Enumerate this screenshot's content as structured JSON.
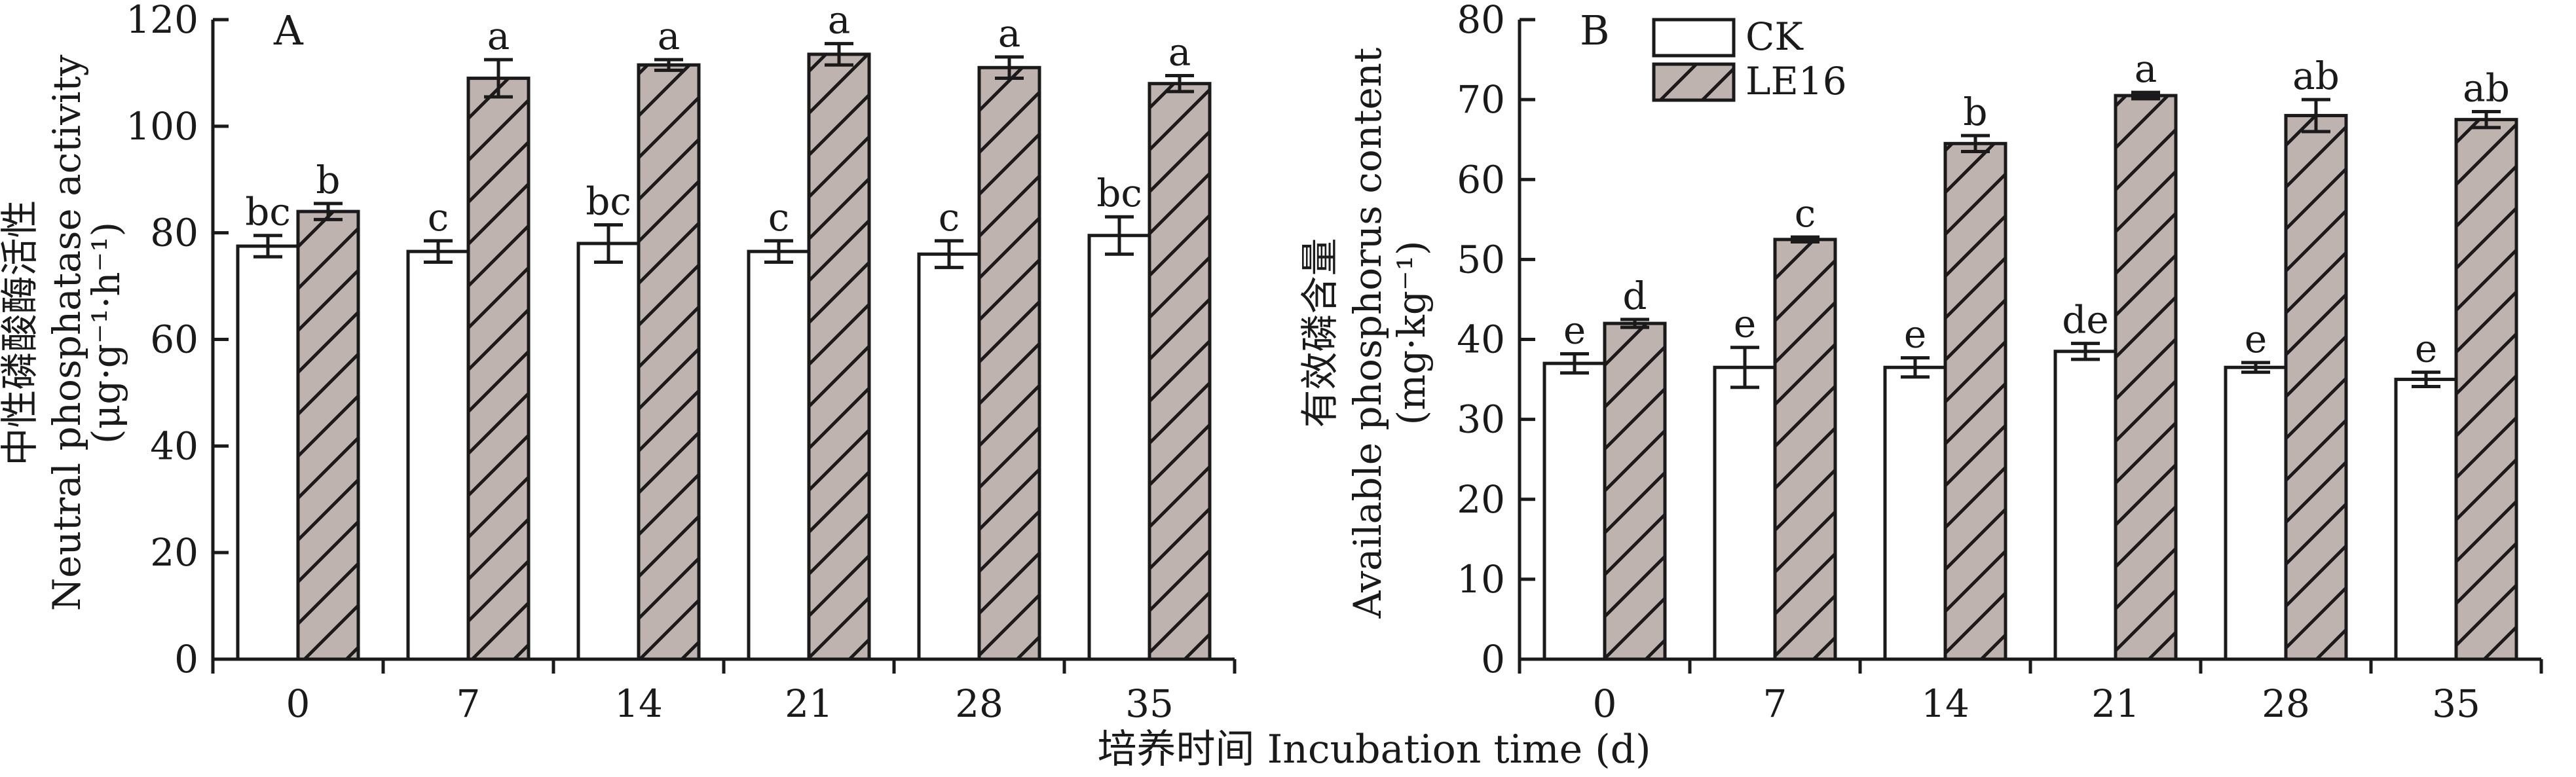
{
  "figure": {
    "xlabel": "培养时间 Incubation time (d)",
    "colors": {
      "ck_fill": "#ffffff",
      "le16_fill": "#bfb3b0",
      "stroke": "#1a1a1a"
    }
  },
  "chart_data": [
    {
      "type": "bar",
      "panel_label": "A",
      "categories": [
        "0",
        "7",
        "14",
        "21",
        "28",
        "35"
      ],
      "ylim": [
        0,
        120
      ],
      "yticks": [
        0,
        20,
        40,
        60,
        80,
        100,
        120
      ],
      "ylabel_cn": "中性磷酸酶活性",
      "ylabel_en": "Neutral phosphatase activity",
      "ylabel_unit": "(μg·g⁻¹·h⁻¹)",
      "legend": false,
      "series": [
        {
          "name": "CK",
          "pattern": "none",
          "values": [
            77.5,
            76.5,
            78,
            76.5,
            76,
            79.5
          ],
          "errors": [
            2,
            2,
            3.5,
            2,
            2.5,
            3.5
          ],
          "letters": [
            "bc",
            "c",
            "bc",
            "c",
            "c",
            "bc"
          ]
        },
        {
          "name": "LE16",
          "pattern": "hatch",
          "values": [
            84,
            109,
            111.5,
            113.5,
            111,
            108
          ],
          "errors": [
            1.5,
            3.5,
            1,
            2,
            2,
            1.5
          ],
          "letters": [
            "b",
            "a",
            "a",
            "a",
            "a",
            "a"
          ]
        }
      ]
    },
    {
      "type": "bar",
      "panel_label": "B",
      "categories": [
        "0",
        "7",
        "14",
        "21",
        "28",
        "35"
      ],
      "ylim": [
        0,
        80
      ],
      "yticks": [
        0,
        10,
        20,
        30,
        40,
        50,
        60,
        70,
        80
      ],
      "ylabel_cn": "有效磷含量",
      "ylabel_en": "Available phosphorus content",
      "ylabel_unit": "(mg·kg⁻¹)",
      "legend": true,
      "series": [
        {
          "name": "CK",
          "pattern": "none",
          "values": [
            37,
            36.5,
            36.5,
            38.5,
            36.5,
            35
          ],
          "errors": [
            1.2,
            2.5,
            1.2,
            1.0,
            0.6,
            0.9
          ],
          "letters": [
            "e",
            "e",
            "e",
            "de",
            "e",
            "e"
          ]
        },
        {
          "name": "LE16",
          "pattern": "hatch",
          "values": [
            42,
            52.5,
            64.5,
            70.5,
            68,
            67.5
          ],
          "errors": [
            0.5,
            0.3,
            1.0,
            0.4,
            2.0,
            1.0
          ],
          "letters": [
            "d",
            "c",
            "b",
            "a",
            "ab",
            "ab"
          ]
        }
      ]
    }
  ]
}
